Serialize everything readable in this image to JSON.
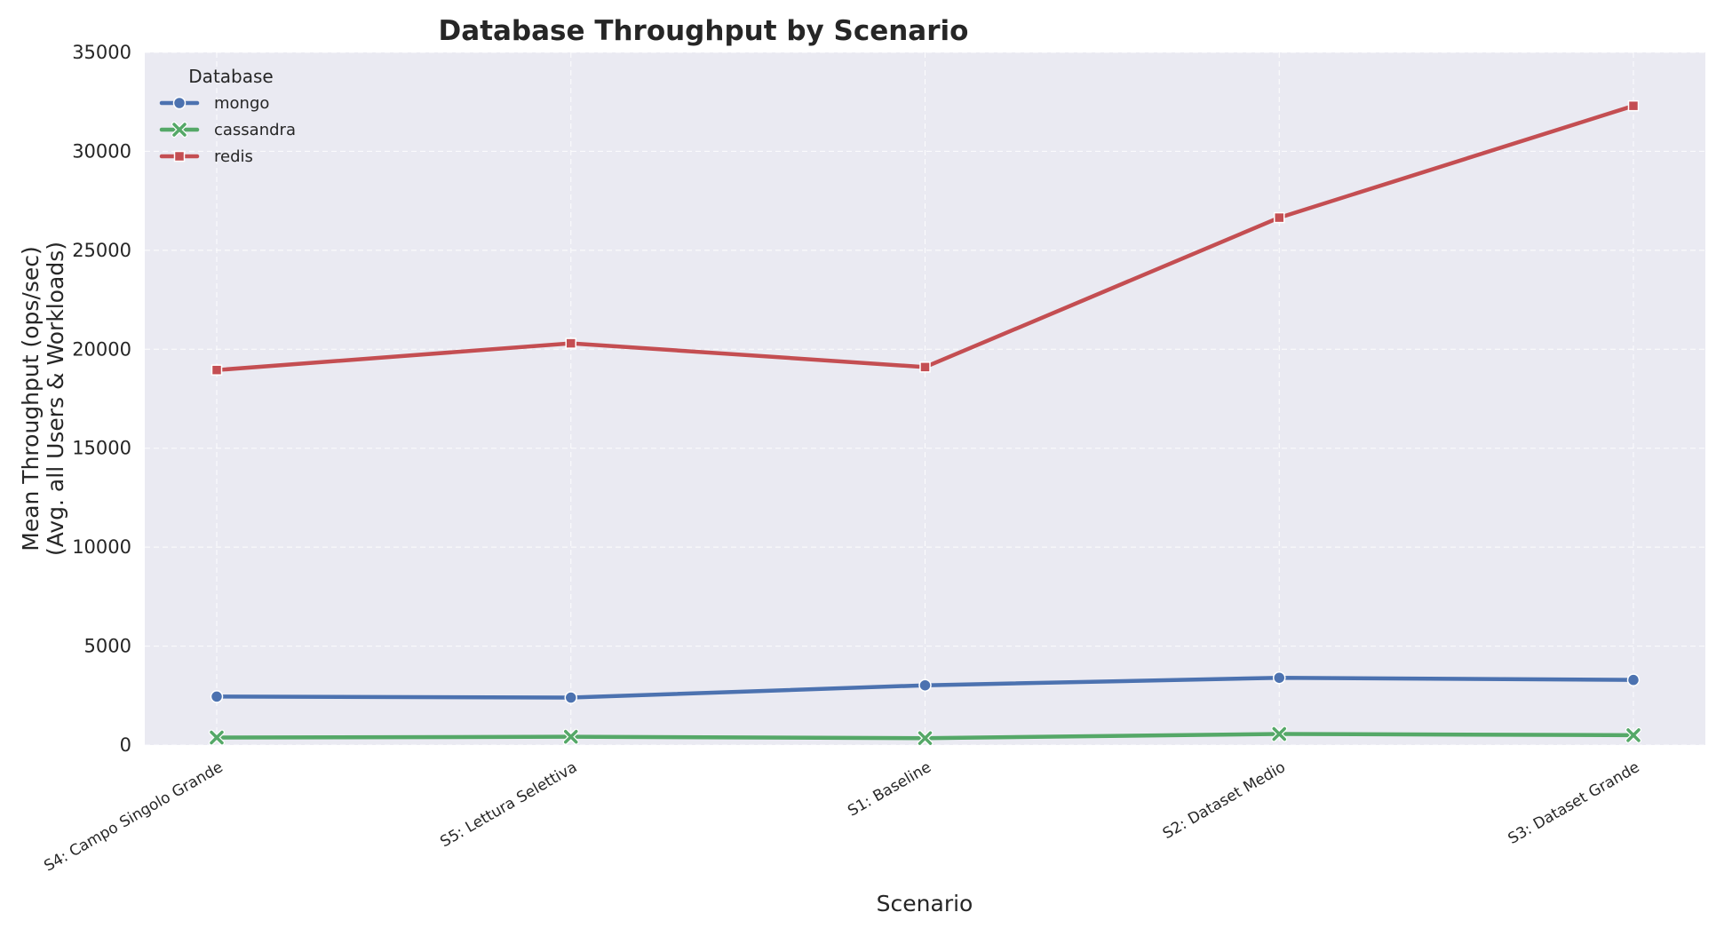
{
  "chart_data": {
    "type": "line",
    "title": "Database Throughput by Scenario",
    "xlabel": "Scenario",
    "ylabel": [
      "Mean Throughput (ops/sec)",
      "(Avg. all Users & Workloads)"
    ],
    "categories": [
      "S4: Campo Singolo Grande",
      "S5: Lettura Selettiva",
      "S1: Baseline",
      "S2: Dataset Medio",
      "S3: Dataset Grande"
    ],
    "ylim": [
      0,
      35000
    ],
    "yticks": [
      0,
      5000,
      10000,
      15000,
      20000,
      25000,
      30000,
      35000
    ],
    "grid": true,
    "legend": {
      "title": "Database",
      "placement": "top-left"
    },
    "series": [
      {
        "name": "mongo",
        "color": "#4c72b0",
        "marker": "circle",
        "values": [
          2450,
          2400,
          3020,
          3400,
          3290
        ]
      },
      {
        "name": "cassandra",
        "color": "#55a868",
        "marker": "x",
        "values": [
          380,
          420,
          350,
          560,
          500
        ]
      },
      {
        "name": "redis",
        "color": "#c44e52",
        "marker": "square",
        "values": [
          18950,
          20300,
          19100,
          26650,
          32300
        ]
      }
    ]
  }
}
